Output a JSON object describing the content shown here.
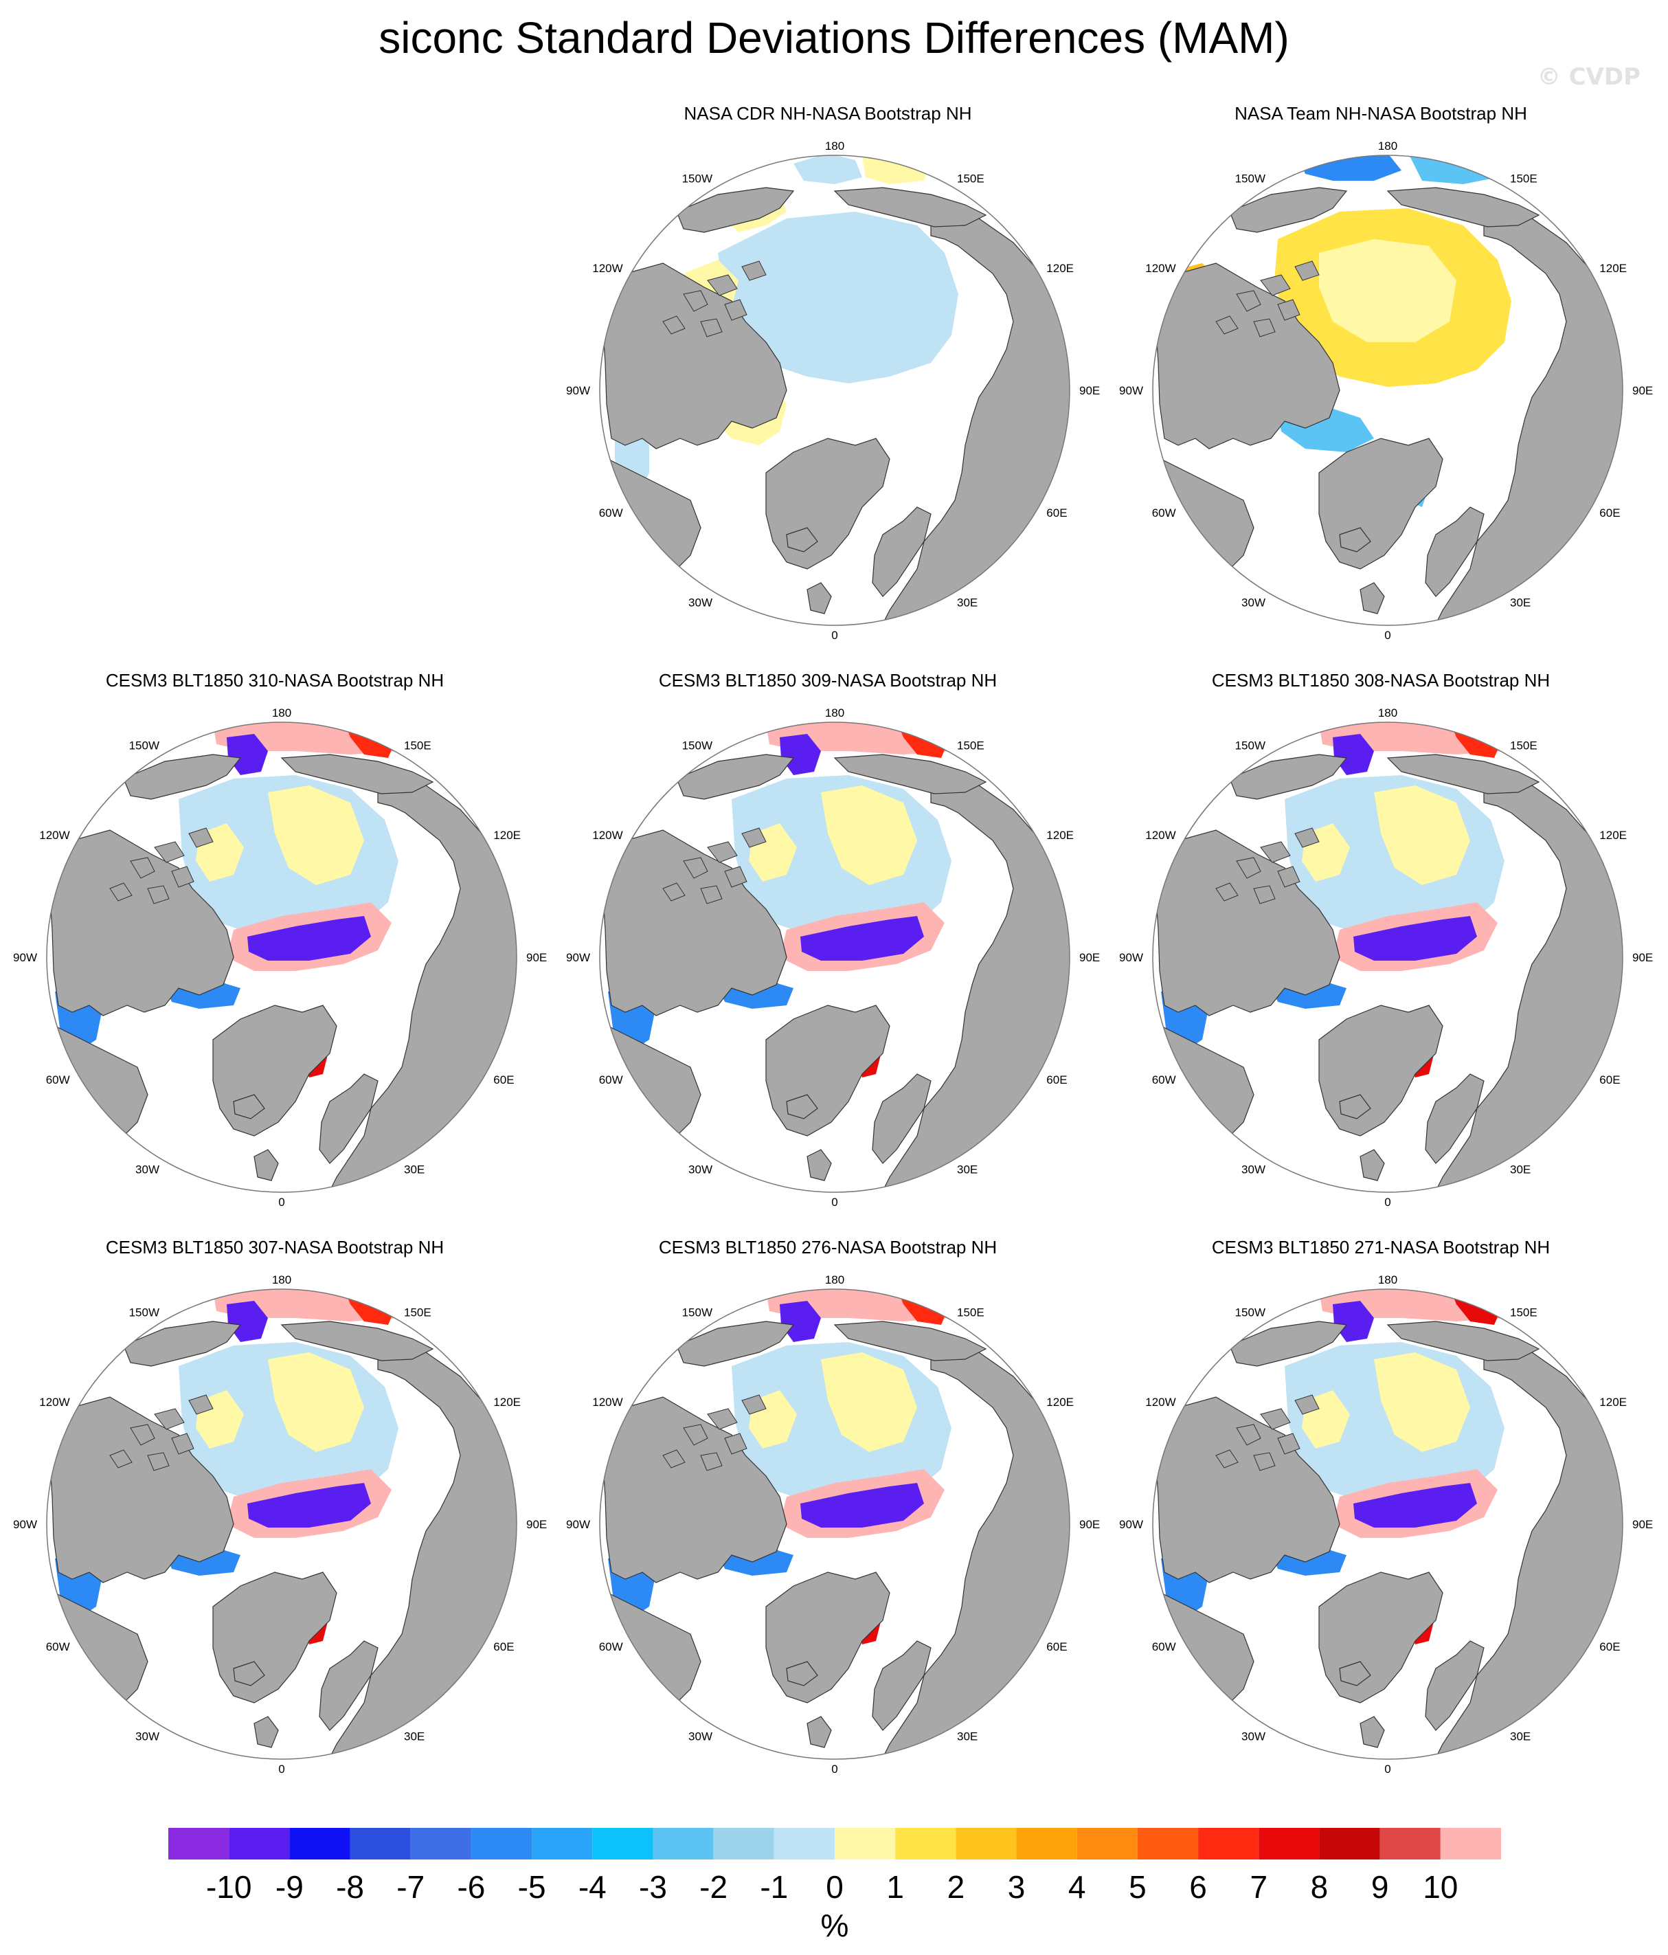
{
  "title": "siconc Standard Deviations Differences (MAM)",
  "watermark": "© CVDP",
  "panels": [
    {
      "title": "NASA CDR NH-NASA Bootstrap NH",
      "style": "cdr"
    },
    {
      "title": "NASA Team NH-NASA Bootstrap NH",
      "style": "team"
    },
    {
      "title": "CESM3 BLT1850 310-NASA Bootstrap NH",
      "style": "model"
    },
    {
      "title": "CESM3 BLT1850 309-NASA Bootstrap NH",
      "style": "model"
    },
    {
      "title": "CESM3 BLT1850 308-NASA Bootstrap NH",
      "style": "model"
    },
    {
      "title": "CESM3 BLT1850 307-NASA Bootstrap NH",
      "style": "model"
    },
    {
      "title": "CESM3 BLT1850 276-NASA Bootstrap NH",
      "style": "model"
    },
    {
      "title": "CESM3 BLT1850 271-NASA Bootstrap NH",
      "style": "model271"
    }
  ],
  "lon_labels": {
    "top": "180",
    "bottom": "0",
    "upper_left": "150W",
    "upper_right": "150E",
    "mid_upper_left": "120W",
    "mid_upper_right": "120E",
    "left": "90W",
    "right": "90E",
    "mid_lower_left": "60W",
    "mid_lower_right": "60E",
    "lower_left": "30W",
    "lower_right": "30E"
  },
  "colorbar": {
    "colors": [
      "#8a2be2",
      "#5a1ff0",
      "#1010f5",
      "#2d4fe0",
      "#3f6fe6",
      "#2d8af5",
      "#2aa4f8",
      "#0bc3fa",
      "#5bc4f5",
      "#9ed3ee",
      "#bfe3f5",
      "#fff8a6",
      "#ffe347",
      "#ffc31e",
      "#ffa30a",
      "#ff8a10",
      "#ff5a10",
      "#ff2a10",
      "#e80a0a",
      "#c60808",
      "#e04848",
      "#ffb4b4"
    ],
    "labels": [
      "-10",
      "-9",
      "-8",
      "-7",
      "-6",
      "-5",
      "-4",
      "-3",
      "-2",
      "-1",
      "0",
      "1",
      "2",
      "3",
      "4",
      "5",
      "6",
      "7",
      "8",
      "9",
      "10"
    ],
    "unit": "%"
  },
  "colors": {
    "land": "#a8a8a8",
    "ocean": "#ffffff",
    "outline": "#000000"
  }
}
